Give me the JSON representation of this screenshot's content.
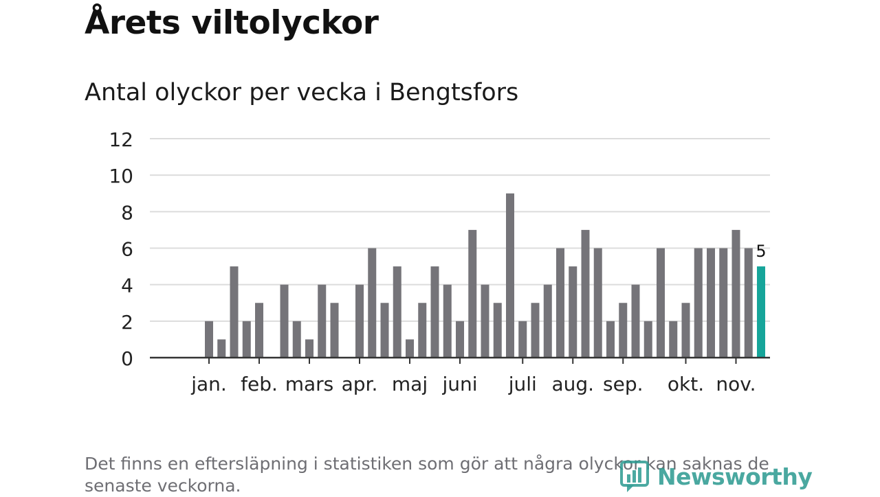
{
  "header": {
    "title": "Årets viltolyckor",
    "subtitle": "Antal olyckor per vecka i Bengtsfors"
  },
  "footer": {
    "note": "Det finns en eftersläpning i statistiken som gör att några olyckor kan saknas de senaste veckorna.",
    "brand": "Newsworthy"
  },
  "colors": {
    "bar": "#757479",
    "highlight": "#16a59a",
    "grid": "#dcdcdc",
    "axis": "#333333",
    "text": "#222222"
  },
  "chart_data": {
    "type": "bar",
    "title": "Antal olyckor per vecka i Bengtsfors",
    "xlabel": "",
    "ylabel": "",
    "ylim": [
      0,
      12
    ],
    "yticks": [
      0,
      2,
      4,
      6,
      8,
      10,
      12
    ],
    "weeks": [
      1,
      2,
      3,
      4,
      5,
      6,
      7,
      8,
      9,
      10,
      11,
      12,
      13,
      14,
      15,
      16,
      17,
      18,
      19,
      20,
      21,
      22,
      23,
      24,
      25,
      26,
      27,
      28,
      29,
      30,
      31,
      32,
      33,
      34,
      35,
      36,
      37,
      38,
      39,
      40,
      41,
      42,
      43,
      44,
      45,
      46,
      47
    ],
    "values": [
      0,
      0,
      2,
      1,
      5,
      2,
      3,
      0,
      4,
      2,
      1,
      4,
      3,
      0,
      4,
      6,
      3,
      5,
      1,
      3,
      5,
      4,
      2,
      7,
      4,
      3,
      9,
      2,
      3,
      4,
      6,
      5,
      7,
      6,
      2,
      3,
      4,
      2,
      6,
      2,
      3,
      6,
      6,
      6,
      7,
      6,
      5
    ],
    "highlight_index": 46,
    "highlight_label": "5",
    "month_labels": [
      {
        "label": "jan.",
        "week": 3
      },
      {
        "label": "feb.",
        "week": 7
      },
      {
        "label": "mars",
        "week": 11
      },
      {
        "label": "apr.",
        "week": 15
      },
      {
        "label": "maj",
        "week": 19
      },
      {
        "label": "juni",
        "week": 23
      },
      {
        "label": "juli",
        "week": 28
      },
      {
        "label": "aug.",
        "week": 32
      },
      {
        "label": "sep.",
        "week": 36
      },
      {
        "label": "okt.",
        "week": 41
      },
      {
        "label": "nov.",
        "week": 45
      }
    ]
  }
}
